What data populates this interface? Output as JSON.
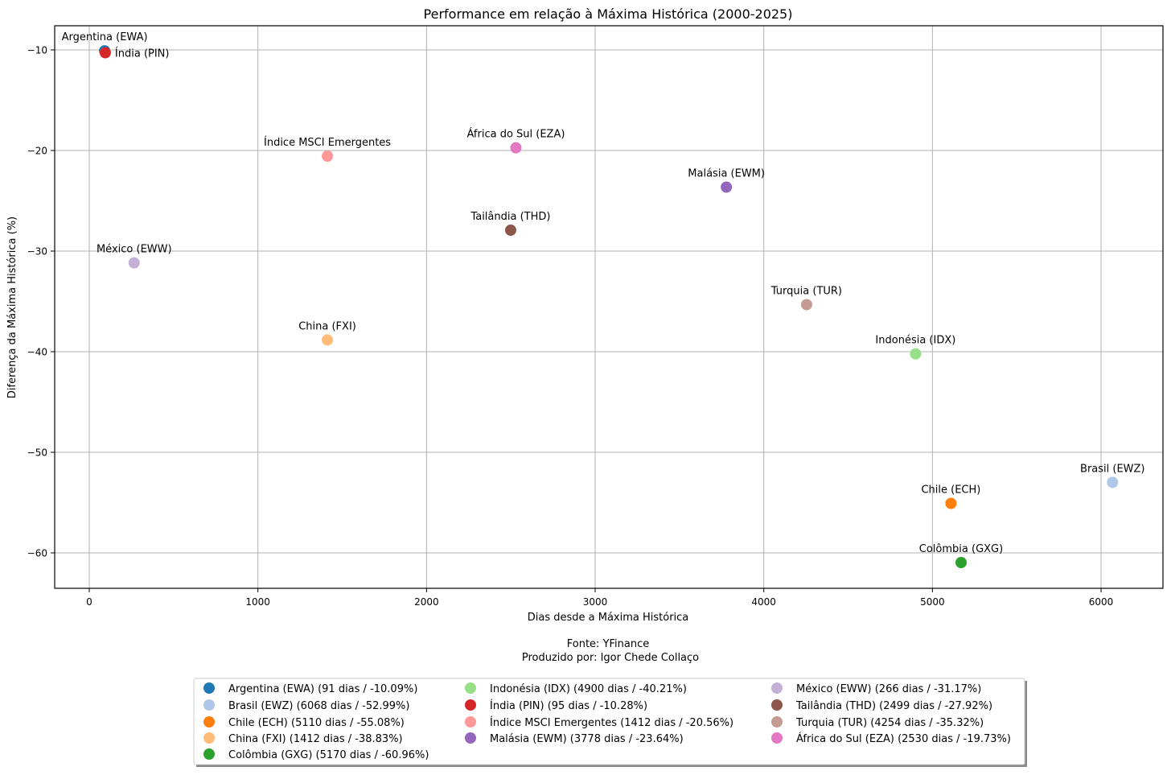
{
  "chart_data": {
    "type": "scatter",
    "title": "Performance em relação à Máxima Histórica (2000-2025)",
    "xlabel": "Dias desde a Máxima Histórica",
    "ylabel": "Diferença da Máxima Histórica (%)",
    "footer": [
      "Fonte: YFinance",
      "Produzido por: Igor Chede Collaço"
    ],
    "xlim": [
      -200,
      6370
    ],
    "ylim": [
      -63.6,
      -7.6
    ],
    "xticks": [
      0,
      1000,
      2000,
      3000,
      4000,
      5000,
      6000
    ],
    "yticks": [
      -10,
      -20,
      -30,
      -40,
      -50,
      -60
    ],
    "xtick_labels": [
      "0",
      "1000",
      "2000",
      "3000",
      "4000",
      "5000",
      "6000"
    ],
    "ytick_labels": [
      "−10",
      "−20",
      "−30",
      "−40",
      "−50",
      "−60"
    ],
    "grid": true,
    "legend_position": "bottom-center",
    "series": [
      {
        "name": "Argentina (EWA)",
        "x": 91,
        "y": -10.09,
        "color": "#1f77b4",
        "legend": "Argentina (EWA) (91 dias / -10.09%)"
      },
      {
        "name": "Brasil (EWZ)",
        "x": 6068,
        "y": -52.99,
        "color": "#aec7e8",
        "legend": "Brasil (EWZ) (6068 dias / -52.99%)"
      },
      {
        "name": "Chile (ECH)",
        "x": 5110,
        "y": -55.08,
        "color": "#ff7f0e",
        "legend": "Chile (ECH) (5110 dias / -55.08%)"
      },
      {
        "name": "China (FXI)",
        "x": 1412,
        "y": -38.83,
        "color": "#ffbb78",
        "legend": "China (FXI) (1412 dias / -38.83%)"
      },
      {
        "name": "Colômbia (GXG)",
        "x": 5170,
        "y": -60.96,
        "color": "#2ca02c",
        "legend": "Colômbia (GXG) (5170 dias / -60.96%)"
      },
      {
        "name": "Indonésia (IDX)",
        "x": 4900,
        "y": -40.21,
        "color": "#98df8a",
        "legend": "Indonésia (IDX) (4900 dias / -40.21%)"
      },
      {
        "name": "Índia (PIN)",
        "x": 95,
        "y": -10.28,
        "color": "#d62728",
        "legend": "Índia (PIN) (95 dias / -10.28%)"
      },
      {
        "name": "Índice MSCI Emergentes",
        "x": 1412,
        "y": -20.56,
        "color": "#ff9896",
        "legend": "Índice MSCI Emergentes (1412 dias / -20.56%)"
      },
      {
        "name": "Malásia (EWM)",
        "x": 3778,
        "y": -23.64,
        "color": "#9467bd",
        "legend": "Malásia (EWM) (3778 dias / -23.64%)"
      },
      {
        "name": "México (EWW)",
        "x": 266,
        "y": -31.17,
        "color": "#c5b0d5",
        "legend": "México (EWW) (266 dias / -31.17%)"
      },
      {
        "name": "Tailândia (THD)",
        "x": 2499,
        "y": -27.92,
        "color": "#8c564b",
        "legend": "Tailândia (THD) (2499 dias / -27.92%)"
      },
      {
        "name": "Turquia (TUR)",
        "x": 4254,
        "y": -35.32,
        "color": "#c49c94",
        "legend": "Turquia (TUR) (4254 dias / -35.32%)"
      },
      {
        "name": "África do Sul (EZA)",
        "x": 2530,
        "y": -19.73,
        "color": "#e377c2",
        "legend": "África do Sul (EZA) (2530 dias / -19.73%)"
      }
    ]
  }
}
